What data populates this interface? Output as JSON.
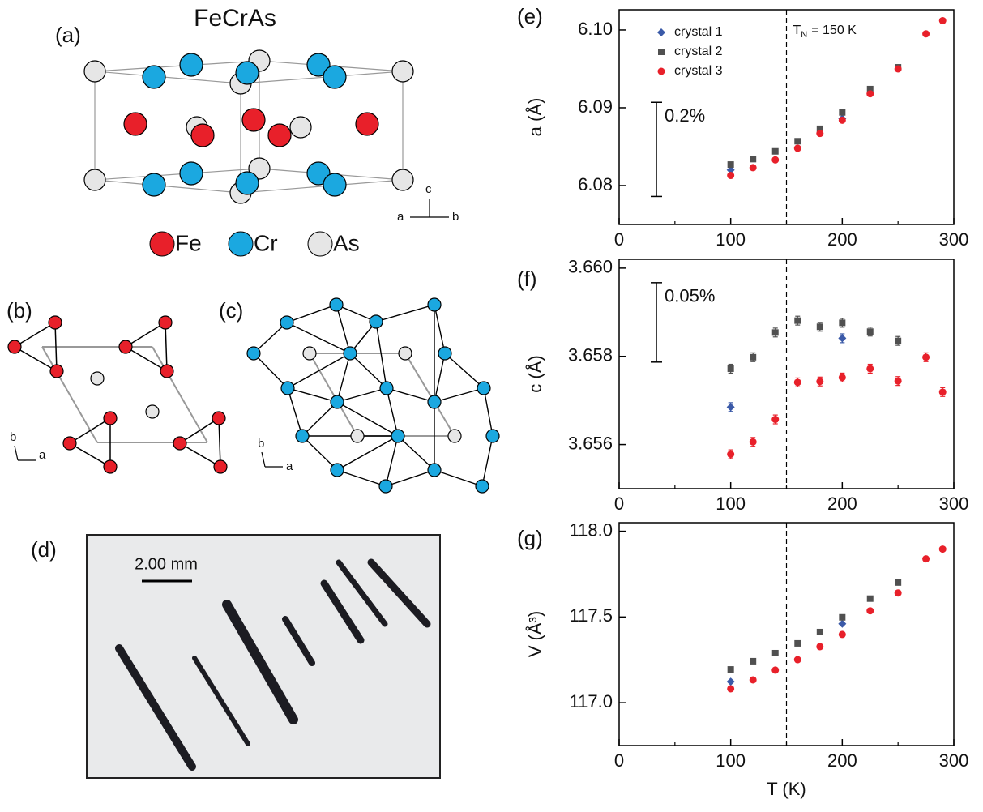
{
  "figure": {
    "title": "FeCrAs",
    "panel_labels": [
      "(a)",
      "(b)",
      "(c)",
      "(d)",
      "(e)",
      "(f)",
      "(g)"
    ],
    "atoms": [
      "Fe",
      "Cr",
      "As"
    ],
    "axes_a": [
      "c",
      "a",
      "b"
    ],
    "axes_b": [
      "b",
      "a"
    ],
    "axes_c": [
      "b",
      "a"
    ],
    "scale_bar": "2.00 mm"
  },
  "chart_data": [
    {
      "type": "scatter",
      "ylabel": "a (Å)",
      "xlim": [
        0,
        300
      ],
      "xticks": [
        0,
        100,
        200,
        300
      ],
      "xminor": [
        50,
        150,
        250
      ],
      "ylim": [
        6.075,
        6.1026
      ],
      "yticks": [
        6.08,
        6.09,
        {
          "value": 6.1,
          "label": "6.10"
        }
      ],
      "vline": 150,
      "legend": "upper left",
      "tn_label": {
        "main": "T",
        "sub": "N",
        "rest": "= 150 K"
      },
      "scale_bar": {
        "values": [
          6.0786,
          6.0907
        ],
        "label": "0.2%"
      },
      "series": [
        {
          "name": "crystal 1",
          "color": "#3b5aa8",
          "marker": "diamond",
          "x": [
            100,
            200
          ],
          "values": [
            6.082,
            6.0886
          ]
        },
        {
          "name": "crystal 2",
          "color": "#505050",
          "marker": "square",
          "x": [
            100,
            120,
            140,
            160,
            180,
            200,
            225,
            250
          ],
          "values": [
            6.0827,
            6.0834,
            6.0844,
            6.0857,
            6.0873,
            6.0894,
            6.0924,
            6.0952
          ]
        },
        {
          "name": "crystal 3",
          "color": "#e8202a",
          "marker": "circle",
          "x": [
            100,
            120,
            140,
            160,
            180,
            200,
            225,
            250,
            275,
            290
          ],
          "values": [
            6.0813,
            6.0823,
            6.0833,
            6.0848,
            6.0867,
            6.0884,
            6.0918,
            6.095,
            6.0995,
            6.1012
          ]
        }
      ]
    },
    {
      "type": "scatter",
      "ylabel": "c (Å)",
      "xlim": [
        0,
        300
      ],
      "xticks": [
        0,
        100,
        200,
        300
      ],
      "xminor": [
        50,
        150,
        250
      ],
      "ylim": [
        3.655,
        3.6602
      ],
      "yticks": [
        3.656,
        3.658,
        {
          "value": 3.66,
          "label": "3.660"
        }
      ],
      "vline": 150,
      "scale_bar": {
        "values": [
          3.65787,
          3.65967
        ],
        "label": "0.05%"
      },
      "series": [
        {
          "name": "crystal 1",
          "color": "#3b5aa8",
          "marker": "diamond",
          "x": [
            100,
            200
          ],
          "values": [
            3.65685,
            3.65841
          ],
          "errors": [
            0.0001,
            0.0001
          ]
        },
        {
          "name": "crystal 2",
          "color": "#505050",
          "marker": "square",
          "x": [
            100,
            120,
            140,
            160,
            180,
            200,
            225,
            250
          ],
          "values": [
            3.65772,
            3.65798,
            3.65854,
            3.65881,
            3.65867,
            3.65876,
            3.65856,
            3.65835
          ],
          "errors": [
            0.0001,
            0.0001,
            0.0001,
            0.0001,
            0.0001,
            0.0001,
            0.0001,
            0.0001
          ]
        },
        {
          "name": "crystal 3",
          "color": "#e8202a",
          "marker": "circle",
          "x": [
            100,
            120,
            140,
            160,
            180,
            200,
            225,
            250,
            275,
            290
          ],
          "values": [
            3.65578,
            3.65606,
            3.65657,
            3.65741,
            3.65743,
            3.65752,
            3.65772,
            3.65744,
            3.65798,
            3.65719
          ],
          "errors": [
            0.0001,
            0.0001,
            0.0001,
            0.0001,
            0.0001,
            0.0001,
            0.0001,
            0.0001,
            0.0001,
            0.0001
          ]
        }
      ]
    },
    {
      "type": "scatter",
      "ylabel": "V (Å³)",
      "xlabel": "T (K)",
      "xlim": [
        0,
        300
      ],
      "xticks": [
        0,
        100,
        200,
        300
      ],
      "xminor": [
        50,
        150,
        250
      ],
      "ylim": [
        116.75,
        118.05
      ],
      "yticks": [
        {
          "value": 117,
          "label": "117.0"
        },
        117.5,
        {
          "value": 118,
          "label": "118.0"
        }
      ],
      "vline": 150,
      "series": [
        {
          "name": "crystal 1",
          "color": "#3b5aa8",
          "marker": "diamond",
          "x": [
            100,
            200
          ],
          "values": [
            117.123,
            117.46
          ]
        },
        {
          "name": "crystal 2",
          "color": "#505050",
          "marker": "square",
          "x": [
            100,
            120,
            140,
            160,
            180,
            200,
            225,
            250
          ],
          "values": [
            117.194,
            117.242,
            117.289,
            117.346,
            117.412,
            117.498,
            117.607,
            117.701
          ]
        },
        {
          "name": "crystal 3",
          "color": "#e8202a",
          "marker": "circle",
          "x": [
            100,
            120,
            140,
            160,
            180,
            200,
            225,
            250,
            275,
            290
          ],
          "values": [
            117.081,
            117.133,
            117.19,
            117.251,
            117.327,
            117.398,
            117.536,
            117.64,
            117.839,
            117.896
          ]
        }
      ]
    }
  ]
}
